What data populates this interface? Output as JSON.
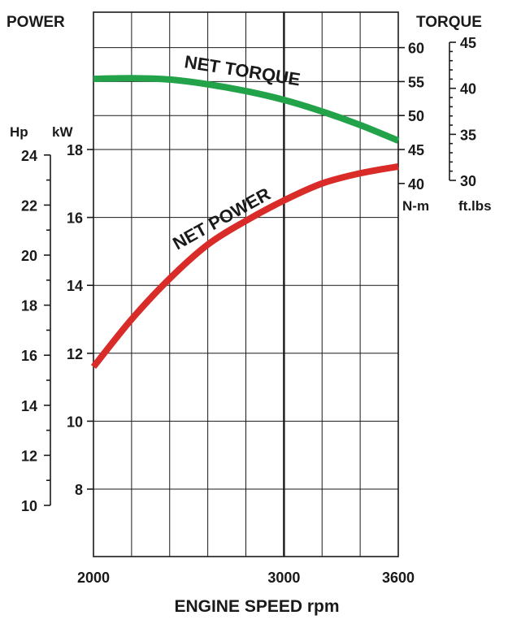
{
  "chart_data": {
    "type": "line",
    "xlabel": "ENGINE SPEED rpm",
    "x_ticks": [
      2000,
      3000,
      3600
    ],
    "x_tick_labels": [
      "2000",
      "3000",
      "3600"
    ],
    "xlim": [
      2000,
      3600
    ],
    "left_title": "POWER",
    "right_title": "TORQUE",
    "power_axis_kw": {
      "unit": "kW",
      "ticks": [
        8,
        10,
        12,
        14,
        16,
        18
      ],
      "tick_labels": [
        "8",
        "10",
        "12",
        "14",
        "16",
        "18"
      ],
      "ylim": [
        4,
        20
      ]
    },
    "power_axis_hp": {
      "unit": "Hp",
      "ticks": [
        10,
        12,
        14,
        16,
        18,
        20,
        22,
        24
      ],
      "tick_labels": [
        "10",
        "12",
        "14",
        "16",
        "18",
        "20",
        "22",
        "24"
      ]
    },
    "torque_axis_nm": {
      "unit": "N-m",
      "ticks": [
        40,
        45,
        50,
        55,
        60
      ],
      "tick_labels": [
        "40",
        "45",
        "50",
        "55",
        "60"
      ]
    },
    "torque_axis_ftlbs": {
      "unit": "ft.lbs",
      "ticks": [
        30,
        35,
        40,
        45
      ],
      "tick_labels": [
        "30",
        "35",
        "40",
        "45"
      ]
    },
    "grid": true,
    "series": [
      {
        "name": "NET TORQUE",
        "axis": "torque_nm",
        "color": "#22a34a",
        "x": [
          2000,
          2200,
          2400,
          2600,
          2800,
          3000,
          3200,
          3400,
          3600
        ],
        "y": [
          55.4,
          55.5,
          55.3,
          54.6,
          53.6,
          52.3,
          50.6,
          48.6,
          46.3
        ]
      },
      {
        "name": "NET POWER",
        "axis": "power_kw",
        "color": "#d92b27",
        "x": [
          2000,
          2200,
          2400,
          2600,
          2800,
          3000,
          3200,
          3400,
          3600
        ],
        "y": [
          11.6,
          13.0,
          14.2,
          15.2,
          15.9,
          16.5,
          17.0,
          17.3,
          17.5
        ]
      }
    ]
  }
}
